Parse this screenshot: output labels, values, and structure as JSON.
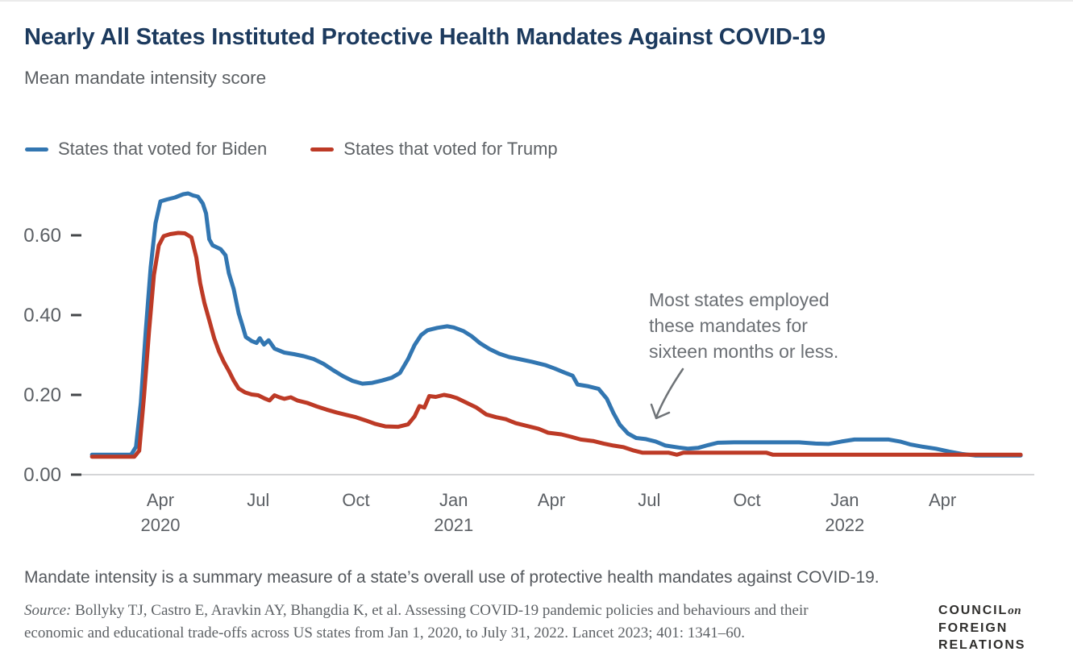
{
  "header": {
    "title": "Nearly All States Instituted Protective Health Mandates Against COVID-19",
    "subtitle": "Mean mandate intensity score"
  },
  "legend": {
    "items": [
      {
        "label": "States that voted for Biden",
        "color": "#3276b1"
      },
      {
        "label": "States that voted for Trump",
        "color": "#bd3a26"
      }
    ]
  },
  "annotation": {
    "text": "Most states employed\nthese mandates for\nsixteen months or less."
  },
  "footer": {
    "note": "Mandate intensity is a summary measure of a state’s overall use of protective health mandates against COVID-19.",
    "source_prefix": "Source:",
    "source_line1": "Bollyky TJ, Castro E, Aravkin AY, Bhangdia K, et al. Assessing COVID-19 pandemic policies and behaviours and their",
    "source_line2": "economic and educational trade-offs across US states from Jan 1, 2020, to July 31, 2022. Lancet 2023; 401: 1341–60."
  },
  "logo": {
    "line1_main": "COUNCIL",
    "line1_accent": "on",
    "line2": "FOREIGN",
    "line3": "RELATIONS"
  },
  "chart_data": {
    "type": "line",
    "title": "Nearly All States Instituted Protective Health Mandates Against COVID-19",
    "subtitle": "Mean mandate intensity score",
    "xlabel": "",
    "ylabel": "Mean mandate intensity score",
    "x_unit": "months since Jan 2020 (0 = Jan 2020)",
    "x_range": [
      0.9,
      29.4
    ],
    "ylim": [
      0,
      0.72
    ],
    "grid": false,
    "legend_position": "top-left",
    "y_axis": {
      "ticks": [
        {
          "v": 0.0,
          "label": "0.00"
        },
        {
          "v": 0.2,
          "label": "0.20"
        },
        {
          "v": 0.4,
          "label": "0.40"
        },
        {
          "v": 0.6,
          "label": "0.60"
        }
      ]
    },
    "x_axis": {
      "ticks": [
        {
          "m": 3,
          "label": "Apr",
          "year": "2020"
        },
        {
          "m": 6,
          "label": "Jul"
        },
        {
          "m": 9,
          "label": "Oct"
        },
        {
          "m": 12,
          "label": "Jan",
          "year": "2021"
        },
        {
          "m": 15,
          "label": "Apr"
        },
        {
          "m": 18,
          "label": "Jul"
        },
        {
          "m": 21,
          "label": "Oct"
        },
        {
          "m": 24,
          "label": "Jan",
          "year": "2022"
        },
        {
          "m": 27,
          "label": "Apr"
        }
      ]
    },
    "series": [
      {
        "name": "States that voted for Biden",
        "color": "#3276b1",
        "points": [
          [
            0.9,
            0.05
          ],
          [
            2.1,
            0.05
          ],
          [
            2.25,
            0.07
          ],
          [
            2.4,
            0.18
          ],
          [
            2.55,
            0.36
          ],
          [
            2.7,
            0.52
          ],
          [
            2.85,
            0.63
          ],
          [
            3.0,
            0.685
          ],
          [
            3.2,
            0.69
          ],
          [
            3.45,
            0.695
          ],
          [
            3.7,
            0.703
          ],
          [
            3.85,
            0.705
          ],
          [
            4.0,
            0.7
          ],
          [
            4.15,
            0.697
          ],
          [
            4.3,
            0.68
          ],
          [
            4.4,
            0.655
          ],
          [
            4.5,
            0.59
          ],
          [
            4.6,
            0.575
          ],
          [
            4.85,
            0.565
          ],
          [
            5.0,
            0.55
          ],
          [
            5.1,
            0.505
          ],
          [
            5.25,
            0.465
          ],
          [
            5.4,
            0.405
          ],
          [
            5.5,
            0.378
          ],
          [
            5.62,
            0.345
          ],
          [
            5.8,
            0.335
          ],
          [
            5.95,
            0.33
          ],
          [
            6.05,
            0.342
          ],
          [
            6.18,
            0.326
          ],
          [
            6.32,
            0.337
          ],
          [
            6.5,
            0.316
          ],
          [
            6.8,
            0.306
          ],
          [
            7.1,
            0.302
          ],
          [
            7.4,
            0.297
          ],
          [
            7.7,
            0.29
          ],
          [
            8.0,
            0.278
          ],
          [
            8.3,
            0.262
          ],
          [
            8.6,
            0.247
          ],
          [
            8.9,
            0.235
          ],
          [
            9.2,
            0.228
          ],
          [
            9.5,
            0.23
          ],
          [
            9.8,
            0.236
          ],
          [
            10.1,
            0.243
          ],
          [
            10.35,
            0.255
          ],
          [
            10.6,
            0.29
          ],
          [
            10.8,
            0.325
          ],
          [
            11.0,
            0.35
          ],
          [
            11.2,
            0.362
          ],
          [
            11.5,
            0.368
          ],
          [
            11.8,
            0.372
          ],
          [
            12.0,
            0.369
          ],
          [
            12.3,
            0.36
          ],
          [
            12.55,
            0.347
          ],
          [
            12.8,
            0.33
          ],
          [
            13.1,
            0.315
          ],
          [
            13.4,
            0.303
          ],
          [
            13.7,
            0.295
          ],
          [
            14.0,
            0.29
          ],
          [
            14.4,
            0.283
          ],
          [
            14.8,
            0.275
          ],
          [
            15.1,
            0.266
          ],
          [
            15.4,
            0.256
          ],
          [
            15.65,
            0.248
          ],
          [
            15.8,
            0.226
          ],
          [
            16.1,
            0.222
          ],
          [
            16.45,
            0.215
          ],
          [
            16.7,
            0.19
          ],
          [
            16.9,
            0.155
          ],
          [
            17.1,
            0.125
          ],
          [
            17.35,
            0.103
          ],
          [
            17.6,
            0.092
          ],
          [
            17.9,
            0.089
          ],
          [
            18.2,
            0.083
          ],
          [
            18.5,
            0.073
          ],
          [
            18.9,
            0.068
          ],
          [
            19.2,
            0.065
          ],
          [
            19.5,
            0.067
          ],
          [
            19.8,
            0.074
          ],
          [
            20.1,
            0.08
          ],
          [
            20.6,
            0.081
          ],
          [
            21.6,
            0.081
          ],
          [
            22.6,
            0.081
          ],
          [
            23.1,
            0.078
          ],
          [
            23.5,
            0.077
          ],
          [
            23.9,
            0.083
          ],
          [
            24.3,
            0.088
          ],
          [
            25.0,
            0.088
          ],
          [
            25.35,
            0.088
          ],
          [
            25.7,
            0.083
          ],
          [
            26.0,
            0.076
          ],
          [
            26.4,
            0.07
          ],
          [
            26.8,
            0.065
          ],
          [
            27.2,
            0.058
          ],
          [
            27.6,
            0.052
          ],
          [
            28.0,
            0.048
          ],
          [
            29.4,
            0.048
          ]
        ]
      },
      {
        "name": "States that voted for Trump",
        "color": "#bd3a26",
        "points": [
          [
            0.9,
            0.045
          ],
          [
            2.2,
            0.045
          ],
          [
            2.35,
            0.06
          ],
          [
            2.5,
            0.2
          ],
          [
            2.65,
            0.36
          ],
          [
            2.8,
            0.5
          ],
          [
            2.95,
            0.575
          ],
          [
            3.1,
            0.598
          ],
          [
            3.3,
            0.603
          ],
          [
            3.55,
            0.606
          ],
          [
            3.75,
            0.605
          ],
          [
            3.95,
            0.595
          ],
          [
            4.1,
            0.545
          ],
          [
            4.22,
            0.48
          ],
          [
            4.35,
            0.43
          ],
          [
            4.5,
            0.387
          ],
          [
            4.65,
            0.342
          ],
          [
            4.8,
            0.308
          ],
          [
            4.95,
            0.282
          ],
          [
            5.1,
            0.26
          ],
          [
            5.25,
            0.236
          ],
          [
            5.4,
            0.216
          ],
          [
            5.6,
            0.206
          ],
          [
            5.8,
            0.201
          ],
          [
            6.0,
            0.199
          ],
          [
            6.2,
            0.191
          ],
          [
            6.35,
            0.186
          ],
          [
            6.5,
            0.199
          ],
          [
            6.65,
            0.194
          ],
          [
            6.8,
            0.19
          ],
          [
            7.0,
            0.194
          ],
          [
            7.2,
            0.186
          ],
          [
            7.5,
            0.18
          ],
          [
            7.8,
            0.171
          ],
          [
            8.1,
            0.163
          ],
          [
            8.4,
            0.156
          ],
          [
            8.7,
            0.15
          ],
          [
            9.0,
            0.144
          ],
          [
            9.3,
            0.136
          ],
          [
            9.6,
            0.127
          ],
          [
            9.9,
            0.121
          ],
          [
            10.3,
            0.12
          ],
          [
            10.6,
            0.126
          ],
          [
            10.8,
            0.146
          ],
          [
            10.95,
            0.172
          ],
          [
            11.1,
            0.168
          ],
          [
            11.25,
            0.197
          ],
          [
            11.45,
            0.195
          ],
          [
            11.7,
            0.2
          ],
          [
            11.9,
            0.197
          ],
          [
            12.1,
            0.192
          ],
          [
            12.4,
            0.18
          ],
          [
            12.7,
            0.168
          ],
          [
            13.0,
            0.151
          ],
          [
            13.3,
            0.144
          ],
          [
            13.6,
            0.139
          ],
          [
            13.9,
            0.129
          ],
          [
            14.3,
            0.121
          ],
          [
            14.6,
            0.115
          ],
          [
            14.9,
            0.105
          ],
          [
            15.3,
            0.101
          ],
          [
            15.6,
            0.095
          ],
          [
            15.9,
            0.088
          ],
          [
            16.3,
            0.084
          ],
          [
            16.6,
            0.078
          ],
          [
            16.9,
            0.073
          ],
          [
            17.2,
            0.069
          ],
          [
            17.5,
            0.061
          ],
          [
            17.8,
            0.055
          ],
          [
            18.6,
            0.055
          ],
          [
            18.85,
            0.05
          ],
          [
            19.05,
            0.055
          ],
          [
            20.5,
            0.055
          ],
          [
            21.6,
            0.055
          ],
          [
            21.8,
            0.05
          ],
          [
            24.0,
            0.05
          ],
          [
            27.0,
            0.05
          ],
          [
            29.4,
            0.05
          ]
        ]
      }
    ],
    "annotations": [
      {
        "text": "Most states employed these mandates for sixteen months or less.",
        "arrow_points_to": "Biden line around Jul–Aug 2021 at ~0.07"
      }
    ]
  }
}
